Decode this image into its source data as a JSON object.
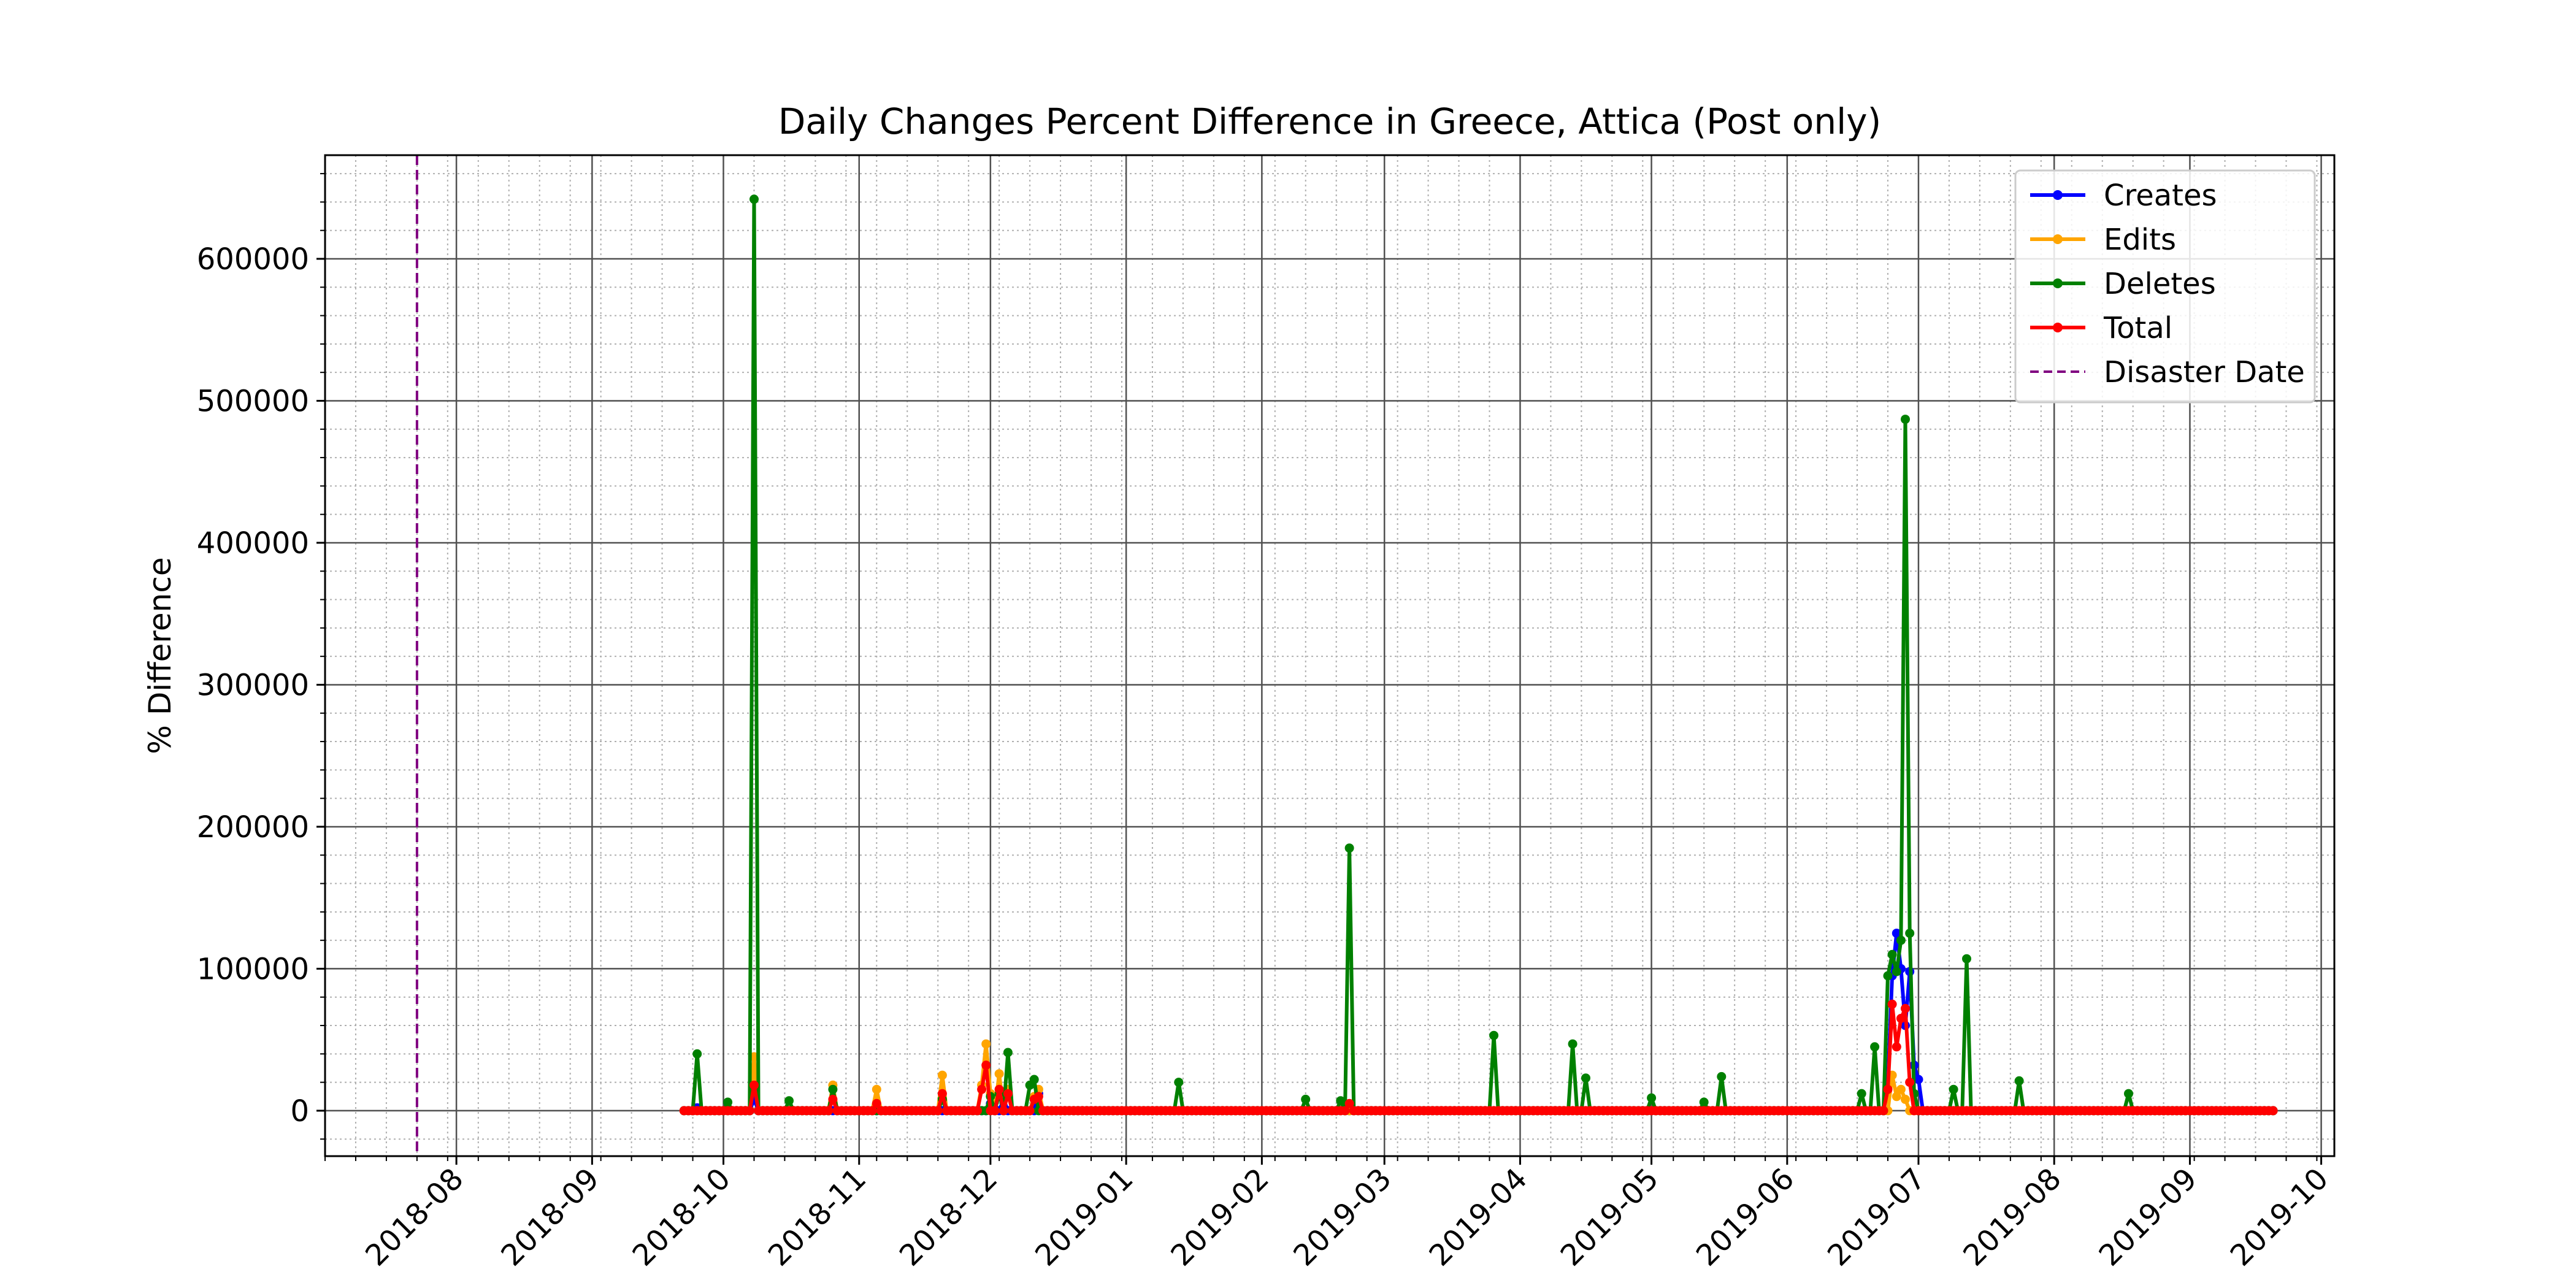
{
  "chart_data": {
    "type": "line",
    "title": "Daily Changes Percent Difference in Greece, Attica (Post only)",
    "xlabel": "",
    "ylabel": "% Difference",
    "x_range": [
      "2018-07-02",
      "2019-10-04"
    ],
    "ylim": [
      -32000,
      673000
    ],
    "y_ticks": [
      0,
      100000,
      200000,
      300000,
      400000,
      500000,
      600000
    ],
    "y_tick_labels": [
      "0",
      "100000",
      "200000",
      "300000",
      "400000",
      "500000",
      "600000"
    ],
    "x_ticks": [
      "2018-08-01",
      "2018-09-01",
      "2018-10-01",
      "2018-11-01",
      "2018-12-01",
      "2019-01-01",
      "2019-02-01",
      "2019-03-01",
      "2019-04-01",
      "2019-05-01",
      "2019-06-01",
      "2019-07-01",
      "2019-08-01",
      "2019-09-01",
      "2019-10-01"
    ],
    "x_tick_labels": [
      "2018-08",
      "2018-09",
      "2018-10",
      "2018-11",
      "2018-12",
      "2019-01",
      "2019-02",
      "2019-03",
      "2019-04",
      "2019-05",
      "2019-06",
      "2019-07",
      "2019-08",
      "2019-09",
      "2019-10"
    ],
    "grid": true,
    "minor_grid": true,
    "legend_position": "upper-right",
    "start_date": "2018-09-22",
    "end_date": "2019-09-20",
    "disaster_date": "2018-07-23",
    "disaster_label": "Disaster Date",
    "disaster_color": "#800080",
    "series": [
      {
        "name": "Creates",
        "color": "#0000ff",
        "spikes": [
          [
            "2018-09-25",
            2000
          ],
          [
            "2018-10-08",
            8000
          ],
          [
            "2018-12-01",
            5000
          ],
          [
            "2018-12-04",
            8000
          ],
          [
            "2018-12-12",
            12000
          ],
          [
            "2019-06-24",
            20000
          ],
          [
            "2019-06-25",
            95000
          ],
          [
            "2019-06-26",
            125000
          ],
          [
            "2019-06-27",
            100000
          ],
          [
            "2019-06-28",
            60000
          ],
          [
            "2019-06-29",
            98000
          ],
          [
            "2019-06-30",
            32000
          ],
          [
            "2019-07-01",
            22000
          ]
        ]
      },
      {
        "name": "Edits",
        "color": "#ffa500",
        "spikes": [
          [
            "2018-10-08",
            38000
          ],
          [
            "2018-10-26",
            18000
          ],
          [
            "2018-11-05",
            15000
          ],
          [
            "2018-11-20",
            25000
          ],
          [
            "2018-11-29",
            18000
          ],
          [
            "2018-11-30",
            47000
          ],
          [
            "2018-12-01",
            12000
          ],
          [
            "2018-12-03",
            26000
          ],
          [
            "2018-12-05",
            15000
          ],
          [
            "2018-12-11",
            10000
          ],
          [
            "2018-12-12",
            15000
          ],
          [
            "2019-06-25",
            25000
          ],
          [
            "2019-06-26",
            10000
          ],
          [
            "2019-06-27",
            15000
          ],
          [
            "2019-06-28",
            8000
          ]
        ]
      },
      {
        "name": "Deletes",
        "color": "#008000",
        "spikes": [
          [
            "2018-09-25",
            40000
          ],
          [
            "2018-10-02",
            6000
          ],
          [
            "2018-10-08",
            642000
          ],
          [
            "2018-10-16",
            7000
          ],
          [
            "2018-10-26",
            15000
          ],
          [
            "2018-11-20",
            8000
          ],
          [
            "2018-12-01",
            10000
          ],
          [
            "2018-12-03",
            12000
          ],
          [
            "2018-12-05",
            41000
          ],
          [
            "2018-12-10",
            18000
          ],
          [
            "2018-12-11",
            22000
          ],
          [
            "2019-01-13",
            20000
          ],
          [
            "2019-02-11",
            8000
          ],
          [
            "2019-02-19",
            7000
          ],
          [
            "2019-02-21",
            185000
          ],
          [
            "2019-03-26",
            53000
          ],
          [
            "2019-04-13",
            47000
          ],
          [
            "2019-04-16",
            23000
          ],
          [
            "2019-05-01",
            9000
          ],
          [
            "2019-05-13",
            6000
          ],
          [
            "2019-05-17",
            24000
          ],
          [
            "2019-06-18",
            12000
          ],
          [
            "2019-06-21",
            45000
          ],
          [
            "2019-06-24",
            95000
          ],
          [
            "2019-06-25",
            110000
          ],
          [
            "2019-06-26",
            98000
          ],
          [
            "2019-06-27",
            120000
          ],
          [
            "2019-06-28",
            487000
          ],
          [
            "2019-06-29",
            125000
          ],
          [
            "2019-06-30",
            12000
          ],
          [
            "2019-07-09",
            15000
          ],
          [
            "2019-07-12",
            107000
          ],
          [
            "2019-07-24",
            21000
          ],
          [
            "2019-08-18",
            12000
          ]
        ]
      },
      {
        "name": "Total",
        "color": "#ff0000",
        "spikes": [
          [
            "2018-10-08",
            18000
          ],
          [
            "2018-10-26",
            8000
          ],
          [
            "2018-11-05",
            5000
          ],
          [
            "2018-11-20",
            12000
          ],
          [
            "2018-11-29",
            15000
          ],
          [
            "2018-11-30",
            32000
          ],
          [
            "2018-12-03",
            15000
          ],
          [
            "2018-12-05",
            12000
          ],
          [
            "2018-12-11",
            8000
          ],
          [
            "2018-12-12",
            10000
          ],
          [
            "2019-02-21",
            5000
          ],
          [
            "2019-06-24",
            15000
          ],
          [
            "2019-06-25",
            75000
          ],
          [
            "2019-06-26",
            45000
          ],
          [
            "2019-06-27",
            65000
          ],
          [
            "2019-06-28",
            72000
          ],
          [
            "2019-06-29",
            20000
          ]
        ]
      }
    ]
  }
}
